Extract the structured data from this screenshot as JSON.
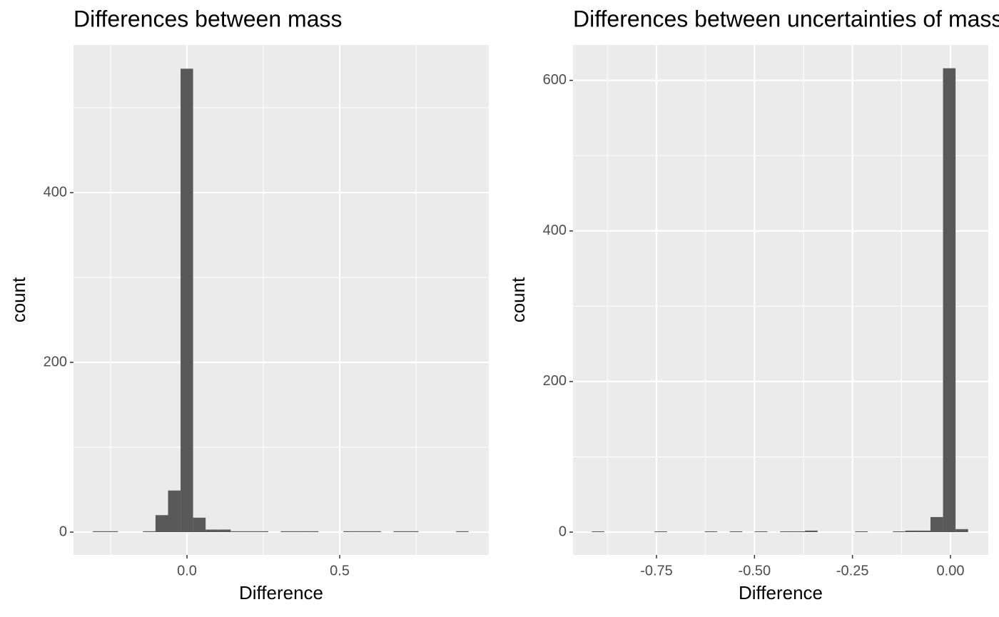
{
  "chart_data": [
    {
      "type": "histogram",
      "title": "Differences between mass",
      "x_label": "Difference",
      "y_label": "count",
      "bins": [
        -0.308,
        -0.267,
        -0.226,
        -0.185,
        -0.144,
        -0.103,
        -0.062,
        -0.021,
        0.02,
        0.061,
        0.102,
        0.143,
        0.184,
        0.225,
        0.266,
        0.307,
        0.348,
        0.389,
        0.43,
        0.471,
        0.512,
        0.553,
        0.594,
        0.635,
        0.676,
        0.717,
        0.758,
        0.799,
        0.84,
        0.881,
        0.922
      ],
      "values": [
        1,
        1,
        0,
        0,
        1,
        20,
        49,
        546,
        17,
        3,
        3,
        1,
        1,
        1,
        0,
        1,
        1,
        1,
        0,
        0,
        1,
        1,
        1,
        0,
        1,
        1,
        0,
        0,
        0,
        1
      ],
      "color": "#595959",
      "xlim": [
        -0.3715,
        0.988
      ],
      "ylim": [
        -26.9,
        574
      ],
      "xticks": [
        {
          "value": 0,
          "label": "0.0"
        },
        {
          "value": 0.5,
          "label": "0.5"
        }
      ],
      "x_minor_grid": [
        -0.25,
        0.25,
        0.75
      ],
      "yticks": [
        0,
        200,
        400
      ],
      "y_minor_grid": [
        100,
        300,
        500
      ],
      "grid": true
    },
    {
      "type": "histogram",
      "title": "Differences between uncertainties of mass",
      "x_label": "Difference",
      "y_label": "count",
      "bins": [
        -0.915,
        -0.883,
        -0.851,
        -0.819,
        -0.787,
        -0.755,
        -0.723,
        -0.691,
        -0.659,
        -0.627,
        -0.595,
        -0.563,
        -0.531,
        -0.499,
        -0.467,
        -0.435,
        -0.403,
        -0.371,
        -0.339,
        -0.307,
        -0.275,
        -0.243,
        -0.211,
        -0.179,
        -0.147,
        -0.115,
        -0.083,
        -0.051,
        -0.019,
        0.013,
        0.045
      ],
      "values": [
        1,
        0,
        0,
        0,
        0,
        1,
        0,
        0,
        0,
        1,
        0,
        1,
        0,
        1,
        0,
        1,
        1,
        2,
        0,
        0,
        0,
        1,
        0,
        0,
        1,
        2,
        2,
        20,
        616,
        4
      ],
      "color": "#595959",
      "xlim": [
        -0.963,
        0.0965
      ],
      "ylim": [
        -30.3,
        647
      ],
      "xticks": [
        {
          "value": -0.75,
          "label": "-0.75"
        },
        {
          "value": -0.5,
          "label": "-0.50"
        },
        {
          "value": -0.25,
          "label": "-0.25"
        },
        {
          "value": 0,
          "label": "0.00"
        }
      ],
      "x_minor_grid": [
        -0.875,
        -0.625,
        -0.375,
        -0.125
      ],
      "yticks": [
        0,
        200,
        400,
        600
      ],
      "y_minor_grid": [
        100,
        300,
        500
      ],
      "grid": true
    }
  ]
}
